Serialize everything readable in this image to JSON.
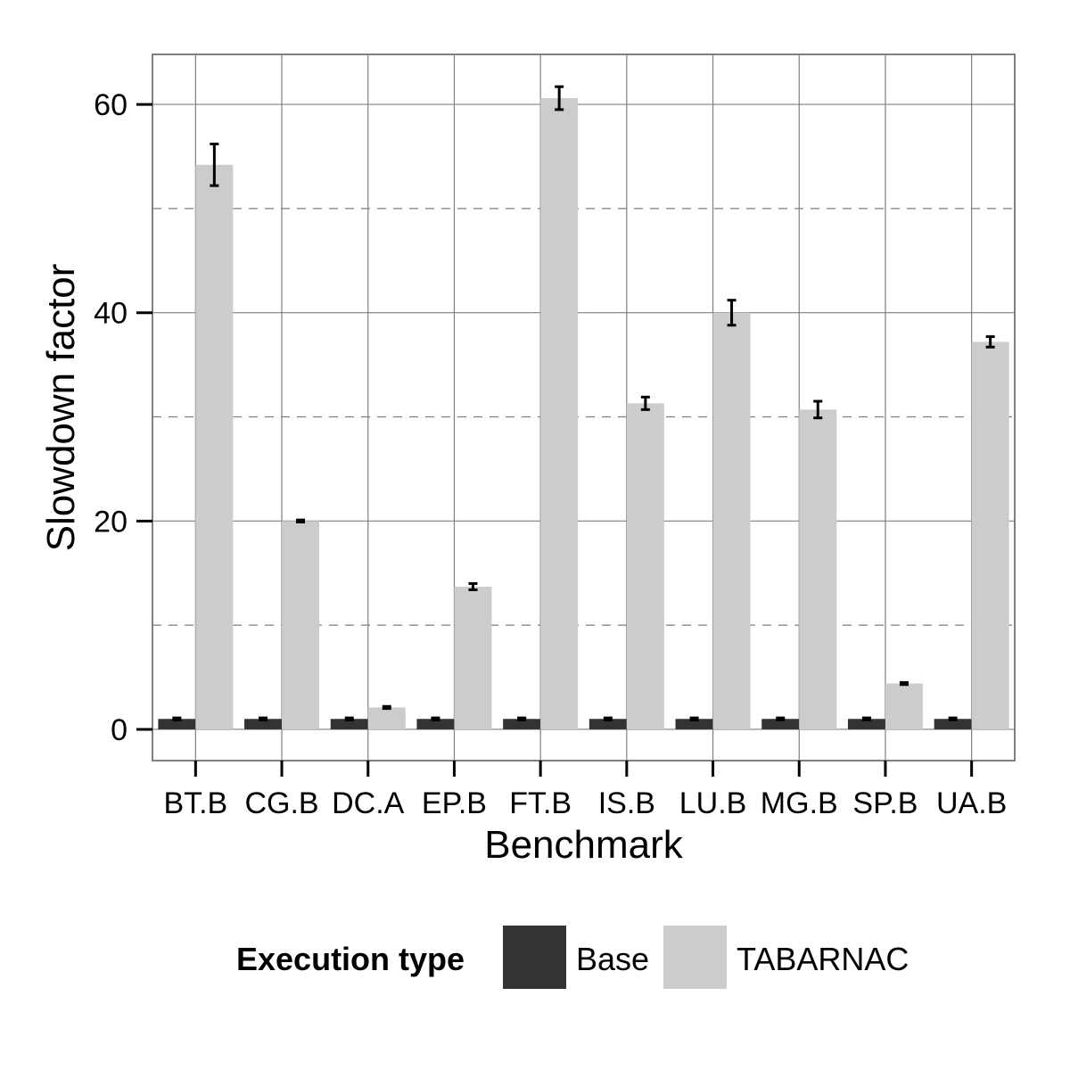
{
  "chart_data": {
    "type": "bar",
    "xlabel": "Benchmark",
    "ylabel": "Slowdown factor",
    "categories": [
      "BT.B",
      "CG.B",
      "DC.A",
      "EP.B",
      "FT.B",
      "IS.B",
      "LU.B",
      "MG.B",
      "SP.B",
      "UA.B"
    ],
    "ylim": [
      -3,
      64.8
    ],
    "yticks": [
      0,
      20,
      40,
      60
    ],
    "ytick_labels": [
      "0",
      "20",
      "40",
      "60"
    ],
    "minor_grid": [
      10,
      30,
      50
    ],
    "grid": true,
    "legend": {
      "title": "Execution type",
      "position": "bottom"
    },
    "series": [
      {
        "name": "Base",
        "color": "#333333",
        "values": [
          1,
          1,
          1,
          1,
          1,
          1,
          1,
          1,
          1,
          1
        ],
        "error": [
          0.1,
          0.1,
          0.1,
          0.1,
          0.1,
          0.1,
          0.1,
          0.1,
          0.1,
          0.1
        ]
      },
      {
        "name": "TABARNAC",
        "color": "#cccccc",
        "values": [
          54.2,
          20.0,
          2.1,
          13.7,
          60.6,
          31.3,
          40.0,
          30.7,
          4.4,
          37.2
        ],
        "error": [
          2.0,
          0.1,
          0.1,
          0.3,
          1.1,
          0.6,
          1.2,
          0.8,
          0.1,
          0.5
        ]
      }
    ]
  }
}
